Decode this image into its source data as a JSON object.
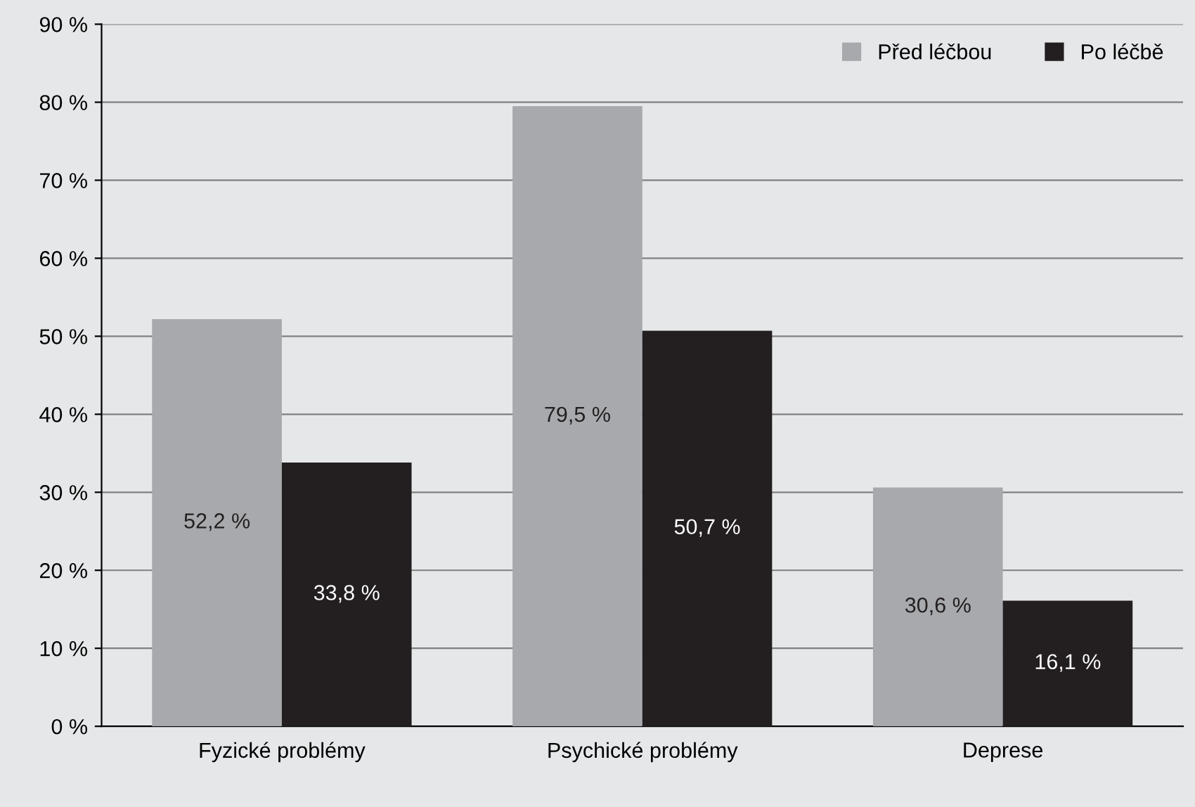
{
  "chart_data": {
    "type": "bar",
    "categories": [
      "Fyzické problémy",
      "Psychické problémy",
      "Deprese"
    ],
    "series": [
      {
        "name": "Před léčbou",
        "color": "#a7a9ac",
        "values": [
          52.2,
          79.5,
          30.6
        ],
        "value_labels": [
          "52,2 %",
          "79,5 %",
          "30,6 %"
        ]
      },
      {
        "name": "Po léčbě",
        "color": "#231f20",
        "values": [
          33.8,
          50.7,
          16.1
        ],
        "value_labels": [
          "33,8 %",
          "50,7 %",
          "16,1 %"
        ]
      }
    ],
    "ylim": [
      0,
      90
    ],
    "yticks": [
      {
        "value": 0,
        "label": "0 %"
      },
      {
        "value": 10,
        "label": "10 %"
      },
      {
        "value": 20,
        "label": "20 %"
      },
      {
        "value": 30,
        "label": "30 %"
      },
      {
        "value": 40,
        "label": "40 %"
      },
      {
        "value": 50,
        "label": "50 %"
      },
      {
        "value": 60,
        "label": "60 %"
      },
      {
        "value": 70,
        "label": "70 %"
      },
      {
        "value": 80,
        "label": "80 %"
      },
      {
        "value": 90,
        "label": "90 %"
      }
    ],
    "grid": "y",
    "legend": "top right"
  }
}
